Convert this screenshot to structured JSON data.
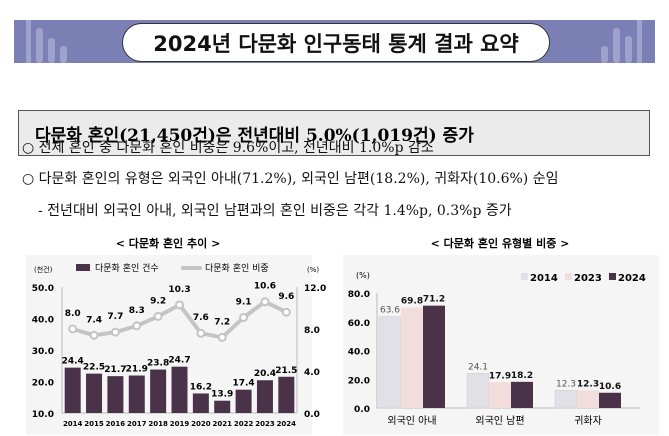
{
  "title": "2024년 다문화 인구동태 통계 결과 요약",
  "headline": "다문화 혼인(21,450건)은 전년대비 5.0%(1,019건) 증가",
  "bullets": [
    "○  전체 혼인 중 다문화 혼인 비중은 9.6%이고, 전년대비 1.0%p 감소",
    "○  다문화 혼인의 유형은 외국인 아내(71.2%), 외국인 남편(18.2%), 귀화자(10.6%) 순임",
    "-  전년대비 외국인 아내, 외국인 남편과의 혼인 비중은 각각 1.4%p, 0.3%p 증가"
  ],
  "colors": {
    "banner": "#7b80b4",
    "bar": "#4a3348",
    "line": "#c4c4c4",
    "y2014": "#e0e0e6",
    "y2023": "#f2dcdc",
    "y2024": "#4a3348"
  },
  "chart_data": [
    {
      "type": "bar+line",
      "title": "< 다문화 혼인 추이 >",
      "ylabel": "(천건)",
      "y2label": "(%)",
      "ylim": [
        10,
        50
      ],
      "yticks": [
        "10.0",
        "20.0",
        "30.0",
        "40.0",
        "50.0"
      ],
      "y2lim": [
        0,
        12
      ],
      "y2ticks": [
        "0.0",
        "4.0",
        "8.0",
        "12.0"
      ],
      "categories": [
        "2014",
        "2015",
        "2016",
        "2017",
        "2018",
        "2019",
        "2020",
        "2021",
        "2022",
        "2023",
        "2024"
      ],
      "series": [
        {
          "name": "다문화 혼인 건수",
          "type": "bar",
          "values": [
            24.4,
            22.5,
            21.7,
            21.9,
            23.8,
            24.7,
            16.2,
            13.9,
            17.4,
            20.4,
            21.5
          ]
        },
        {
          "name": "다문화 혼인 비중",
          "type": "line",
          "values": [
            8.0,
            7.4,
            7.7,
            8.3,
            9.2,
            10.3,
            7.6,
            7.2,
            9.1,
            10.6,
            9.6
          ]
        }
      ],
      "legend": "top"
    },
    {
      "type": "bar",
      "title": "< 다문화 혼인 유형별 비중 >",
      "ylabel": "(%)",
      "ylim": [
        0,
        80
      ],
      "yticks": [
        "0.0",
        "20.0",
        "40.0",
        "60.0",
        "80.0"
      ],
      "categories": [
        "외국인 아내",
        "외국인 남편",
        "귀화자"
      ],
      "series": [
        {
          "name": "2014",
          "values": [
            63.6,
            24.1,
            12.3
          ]
        },
        {
          "name": "2023",
          "values": [
            69.8,
            17.9,
            12.3
          ]
        },
        {
          "name": "2024",
          "values": [
            71.2,
            18.2,
            10.6
          ]
        }
      ],
      "legend": "top-right"
    }
  ]
}
